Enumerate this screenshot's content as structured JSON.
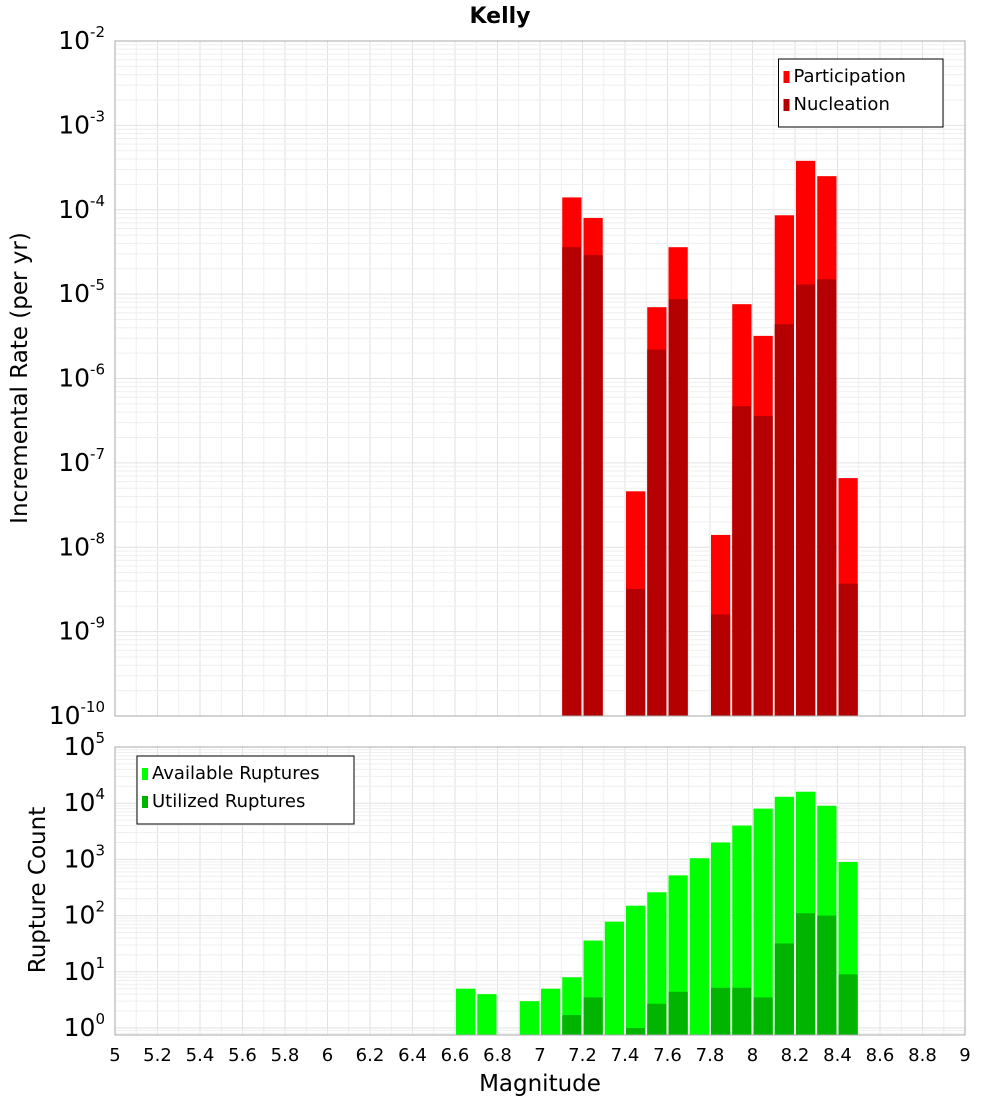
{
  "chart_data": [
    {
      "type": "bar",
      "title": "Kelly",
      "xlabel": "",
      "ylabel": "Incremental Rate (per yr)",
      "yscale": "log",
      "xlim": [
        5,
        9
      ],
      "ylim": [
        1e-10,
        0.01
      ],
      "ytick_exponents": [
        -10,
        -9,
        -8,
        -7,
        -6,
        -5,
        -4,
        -3,
        -2
      ],
      "bar_width": 0.1,
      "grid": true,
      "legend_position": "top-right",
      "series": [
        {
          "name": "Participation",
          "color": "#ff0000",
          "x": [
            7.15,
            7.25,
            7.45,
            7.55,
            7.65,
            7.85,
            7.95,
            8.05,
            8.15,
            8.25,
            8.35,
            8.45
          ],
          "values": [
            0.00014,
            8e-05,
            4.6e-08,
            7e-06,
            3.6e-05,
            1.4e-08,
            7.6e-06,
            3.2e-06,
            8.6e-05,
            0.00038,
            0.00025,
            6.6e-08
          ]
        },
        {
          "name": "Nucleation",
          "color": "#b40000",
          "x": [
            7.15,
            7.25,
            7.45,
            7.55,
            7.65,
            7.85,
            7.95,
            8.05,
            8.15,
            8.25,
            8.35,
            8.45
          ],
          "values": [
            3.6e-05,
            2.9e-05,
            3.2e-09,
            2.2e-06,
            8.7e-06,
            1.6e-09,
            4.7e-07,
            3.6e-07,
            4.4e-06,
            1.3e-05,
            1.5e-05,
            3.7e-09
          ]
        }
      ]
    },
    {
      "type": "bar",
      "title": "",
      "xlabel": "Magnitude",
      "ylabel": "Rupture Count",
      "yscale": "log",
      "xlim": [
        5,
        9
      ],
      "ylim": [
        0.75,
        100000
      ],
      "ytick_exponents": [
        0,
        1,
        2,
        3,
        4,
        5
      ],
      "xticks": [
        "5",
        "5.2",
        "5.4",
        "5.6",
        "5.8",
        "6",
        "6.2",
        "6.4",
        "6.6",
        "6.8",
        "7",
        "7.2",
        "7.4",
        "7.6",
        "7.8",
        "8",
        "8.2",
        "8.4",
        "8.6",
        "8.8",
        "9"
      ],
      "bar_width": 0.1,
      "grid": true,
      "legend_position": "top-left",
      "series": [
        {
          "name": "Available Ruptures",
          "color": "#00ff00",
          "x": [
            6.65,
            6.75,
            6.95,
            7.05,
            7.15,
            7.25,
            7.35,
            7.45,
            7.55,
            7.65,
            7.75,
            7.85,
            7.95,
            8.05,
            8.15,
            8.25,
            8.35,
            8.45
          ],
          "values": [
            5,
            4,
            3,
            5,
            8,
            36,
            78,
            150,
            260,
            520,
            1050,
            2000,
            4000,
            8000,
            13000,
            16000,
            9000,
            900
          ]
        },
        {
          "name": "Utilized Ruptures",
          "color": "#00b400",
          "x": [
            7.15,
            7.25,
            7.45,
            7.55,
            7.65,
            7.85,
            7.95,
            8.05,
            8.15,
            8.25,
            8.35,
            8.45
          ],
          "values": [
            1.7,
            3.5,
            1,
            2.7,
            4.4,
            5.2,
            5.2,
            3.5,
            32,
            110,
            100,
            9
          ]
        }
      ]
    }
  ]
}
